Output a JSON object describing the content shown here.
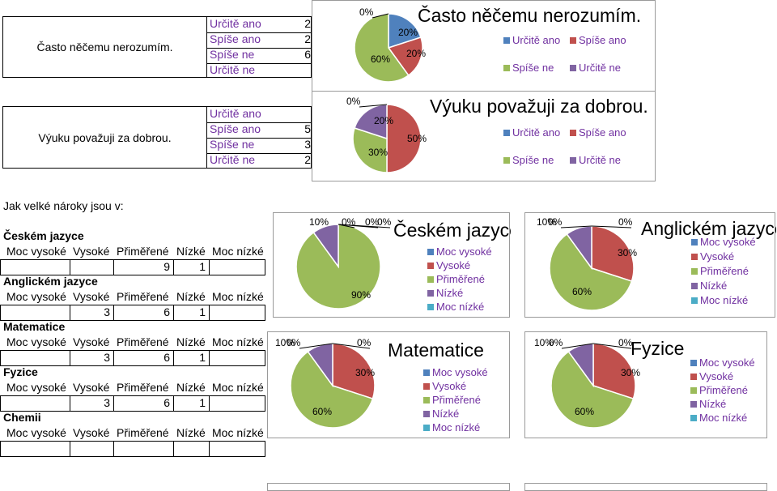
{
  "survey": {
    "questions": [
      {
        "label": "Často něčemu nerozumím.",
        "options": [
          "Určitě ano",
          "Spíše ano",
          "Spíše ne",
          "Určitě ne"
        ],
        "counts": [
          "2",
          "2",
          "6",
          ""
        ]
      },
      {
        "label": "Výuku považuji za dobrou.",
        "options": [
          "Určitě ano",
          "Spíše ano",
          "Spíše ne",
          "Určitě ne"
        ],
        "counts": [
          "",
          "5",
          "3",
          "2"
        ]
      }
    ],
    "demands_title": "Jak velké nároky jsou v:",
    "scale": [
      "Moc vysoké",
      "Vysoké",
      "Přiměřené",
      "Nízké",
      "Moc nízké"
    ],
    "subjects": [
      {
        "name": "Českém jazyce",
        "counts": [
          "",
          "",
          "9",
          "1",
          ""
        ]
      },
      {
        "name": "Anglickém jazyce",
        "counts": [
          "",
          "3",
          "6",
          "1",
          ""
        ]
      },
      {
        "name": "Matematice",
        "counts": [
          "",
          "3",
          "6",
          "1",
          ""
        ]
      },
      {
        "name": "Fyzice",
        "counts": [
          "",
          "3",
          "6",
          "1",
          ""
        ]
      },
      {
        "name": "Chemii",
        "counts": [
          "",
          "",
          "",
          "",
          ""
        ]
      }
    ]
  },
  "colors": {
    "c1": "#4F81BD",
    "c2": "#C0504D",
    "c3": "#9BBB59",
    "c4": "#8064A2",
    "c5": "#4BACC6",
    "purple": "#7030A0"
  },
  "chart_data": [
    {
      "type": "pie",
      "title": "Často něčemu nerozumím.",
      "categories": [
        "Určitě ano",
        "Spíše ano",
        "Spíše ne",
        "Určitě ne"
      ],
      "values": [
        2,
        2,
        6,
        0
      ],
      "labels": [
        "20%",
        "20%",
        "60%",
        "0%"
      ],
      "legend": "right"
    },
    {
      "type": "pie",
      "title": "Výuku považuji za dobrou.",
      "categories": [
        "Určitě ano",
        "Spíše ano",
        "Spíše ne",
        "Určitě ne"
      ],
      "values": [
        0,
        5,
        3,
        2
      ],
      "labels": [
        "0%",
        "50%",
        "30%",
        "20%"
      ],
      "legend": "right"
    },
    {
      "type": "pie",
      "title": "Českém jazyce",
      "categories": [
        "Moc vysoké",
        "Vysoké",
        "Přiměřené",
        "Nízké",
        "Moc nízké"
      ],
      "values": [
        0,
        0,
        9,
        1,
        0
      ],
      "labels": [
        "0%",
        "0%",
        "90%",
        "10%",
        "0%"
      ],
      "legend": "right"
    },
    {
      "type": "pie",
      "title": "Anglickém jazyce",
      "categories": [
        "Moc vysoké",
        "Vysoké",
        "Přiměřené",
        "Nízké",
        "Moc nízké"
      ],
      "values": [
        0,
        3,
        6,
        1,
        0
      ],
      "labels": [
        "0%",
        "30%",
        "60%",
        "10%",
        "0%"
      ],
      "legend": "right"
    },
    {
      "type": "pie",
      "title": "Matematice",
      "categories": [
        "Moc vysoké",
        "Vysoké",
        "Přiměřené",
        "Nízké",
        "Moc nízké"
      ],
      "values": [
        0,
        3,
        6,
        1,
        0
      ],
      "labels": [
        "0%",
        "30%",
        "60%",
        "10%",
        "0%"
      ],
      "legend": "right"
    },
    {
      "type": "pie",
      "title": "Fyzice",
      "categories": [
        "Moc vysoké",
        "Vysoké",
        "Přiměřené",
        "Nízké",
        "Moc nízké"
      ],
      "values": [
        0,
        3,
        6,
        1,
        0
      ],
      "labels": [
        "0%",
        "30%",
        "60%",
        "10%",
        "0%"
      ],
      "legend": "right"
    }
  ]
}
